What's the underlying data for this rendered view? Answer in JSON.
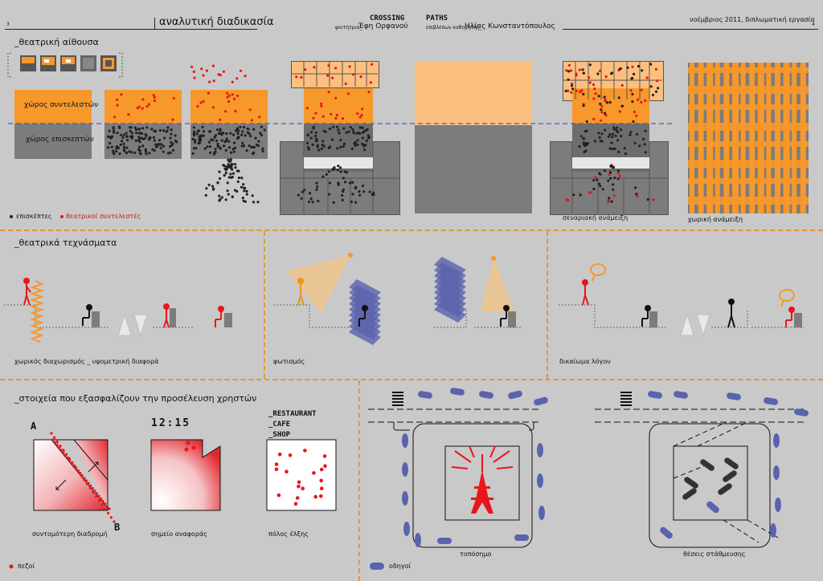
{
  "header": {
    "page_left": "3",
    "title": "αναλυτική διαδικασία",
    "crossing_logo": "CROSSING",
    "student_label": "φοιτήτρια_",
    "student": "Έφη Ορφανού",
    "paths_logo": "PATHS",
    "supervisor_label": "επιβλέπων καθηγητής_",
    "supervisor": "Ηλίας Κωνσταντόπουλος",
    "date_note": "νοέμβριος 2011, διπλωματική εργασία",
    "page_right": "4"
  },
  "section1": {
    "title": "_θεατρική αίθουσα",
    "block_top_label": "χώρος συντελεστών",
    "block_bottom_label": "χώρος επισκεπτών",
    "legend_visitors": "επισκέπτες",
    "legend_contributors": "θεατρικοί συντελεστές",
    "caption_scenario": "σεναριακή ανάμειξη",
    "caption_spatial": "χωρική ανάμειξη"
  },
  "section2": {
    "title": "_θεατρικά τεχνάσματα",
    "caption_1": "χωρικός διαχωρισμός _ υψομετρική διαφορά",
    "caption_2": "φωτισμός",
    "caption_3": "δικαίωμα λόγου"
  },
  "section3": {
    "title": "_στοιχεία που εξασφαλίζουν την προσέλευση χρηστών",
    "label_a": "A",
    "label_b": "B",
    "clock": "12:15",
    "list": [
      "_RESTAURANT",
      "_CAFE",
      "_SHOP"
    ],
    "caption_shortest": "συντομότερη διαδρομή",
    "caption_reference": "σημείο αναφοράς",
    "caption_attraction": "πόλος έλξης",
    "caption_landmark": "τοπόσημο",
    "caption_parking": "θέσεις στάθμευσης",
    "legend_pedestrians": "πεζοί",
    "legend_drivers": "οδηγοί"
  },
  "colors": {
    "orange": "#f7982a",
    "light_orange": "#fbc07f",
    "grey": "#7c7c7c",
    "red": "#e8161b",
    "blue": "#5a63ad",
    "dash_purple": "#4f58b0"
  }
}
